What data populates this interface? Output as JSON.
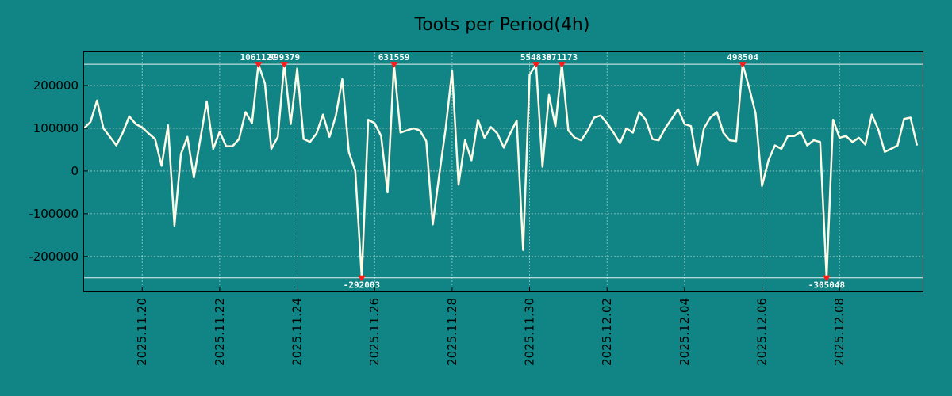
{
  "chart_data": {
    "type": "line",
    "title": "Toots per Period(4h)",
    "xlabel": "",
    "ylabel": "",
    "ylim": [
      -282000,
      278000
    ],
    "xlim": [
      0,
      130
    ],
    "grid": true,
    "y_ticks": [
      {
        "value": 200000,
        "label": "200000"
      },
      {
        "value": 100000,
        "label": "100000"
      },
      {
        "value": 0,
        "label": "0"
      },
      {
        "value": -100000,
        "label": "-100000"
      },
      {
        "value": -200000,
        "label": "-200000"
      }
    ],
    "x_ticks": [
      {
        "x": 9,
        "label": "2025.11.20"
      },
      {
        "x": 21,
        "label": "2025.11.22"
      },
      {
        "x": 33,
        "label": "2025.11.24"
      },
      {
        "x": 45,
        "label": "2025.11.26"
      },
      {
        "x": 57,
        "label": "2025.11.28"
      },
      {
        "x": 69,
        "label": "2025.11.30"
      },
      {
        "x": 81,
        "label": "2025.12.02"
      },
      {
        "x": 93,
        "label": "2025.12.04"
      },
      {
        "x": 105,
        "label": "2025.12.06"
      },
      {
        "x": 117,
        "label": "2025.12.08"
      }
    ],
    "reference_lines": {
      "upper": 250000,
      "lower": -250000
    },
    "series": [
      {
        "name": "Toots",
        "color": "#fffbe6",
        "values": [
          100000,
          115000,
          165000,
          100000,
          80000,
          60000,
          90000,
          128000,
          110000,
          102000,
          88000,
          75000,
          12000,
          107000,
          -128000,
          40000,
          80000,
          -15000,
          75000,
          163000,
          52000,
          92000,
          58000,
          58000,
          75000,
          138000,
          112000,
          250000,
          205000,
          52000,
          80000,
          250000,
          110000,
          240000,
          75000,
          68000,
          88000,
          132000,
          80000,
          130000,
          215000,
          45000,
          0,
          -250000,
          120000,
          112000,
          82000,
          -50000,
          250000,
          90000,
          95000,
          100000,
          95000,
          70000,
          -125000,
          -10000,
          100000,
          235000,
          -32000,
          72000,
          25000,
          120000,
          78000,
          103000,
          88000,
          55000,
          88000,
          118000,
          -185000,
          225000,
          250000,
          10000,
          178000,
          105000,
          250000,
          95000,
          78000,
          72000,
          95000,
          125000,
          130000,
          112000,
          90000,
          65000,
          100000,
          90000,
          138000,
          120000,
          75000,
          72000,
          100000,
          122000,
          145000,
          110000,
          105000,
          15000,
          100000,
          125000,
          138000,
          90000,
          72000,
          70000,
          250000,
          195000,
          135000,
          -35000,
          25000,
          60000,
          52000,
          82000,
          82000,
          92000,
          60000,
          72000,
          68000,
          -250000,
          120000,
          78000,
          82000,
          68000,
          78000,
          62000,
          132000,
          98000,
          45000,
          52000,
          60000,
          122000,
          125000,
          60000
        ]
      }
    ],
    "peaks": [
      {
        "index": 27,
        "value": 250000,
        "label": "1061127",
        "position": "top"
      },
      {
        "index": 31,
        "value": 250000,
        "label": "999379",
        "position": "top"
      },
      {
        "index": 43,
        "value": -250000,
        "label": "-292003",
        "position": "bottom"
      },
      {
        "index": 48,
        "value": 250000,
        "label": "631559",
        "position": "top"
      },
      {
        "index": 70,
        "value": 250000,
        "label": "554830",
        "position": "top"
      },
      {
        "index": 74,
        "value": 250000,
        "label": "371173",
        "position": "top"
      },
      {
        "index": 102,
        "value": 250000,
        "label": "498504",
        "position": "top"
      },
      {
        "index": 115,
        "value": -250000,
        "label": "-305048",
        "position": "bottom"
      }
    ],
    "colors": {
      "background": "#118585",
      "line": "#fffbe6",
      "marker": "#ff1a1a"
    }
  }
}
